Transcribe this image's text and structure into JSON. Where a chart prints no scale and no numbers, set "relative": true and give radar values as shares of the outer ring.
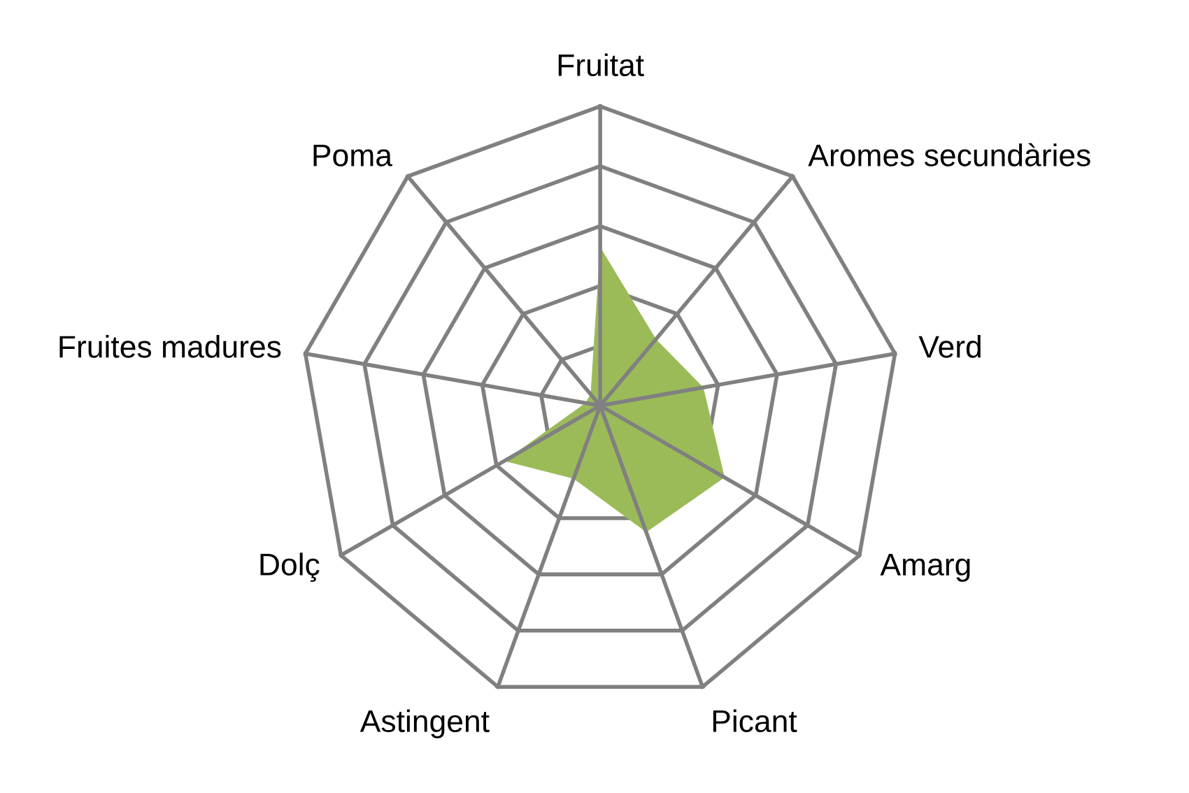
{
  "chart_data": {
    "type": "radar",
    "relative": true,
    "categories": [
      "Fruitat",
      "Aromes secundàries",
      "Verd",
      "Amarg",
      "Picant",
      "Astingent",
      "Dolç",
      "Fruites madures",
      "Poma"
    ],
    "series": [
      {
        "color": "#9bbb59",
        "type": "area",
        "values": [
          0.53,
          0.29,
          0.35,
          0.48,
          0.45,
          0.26,
          0.37,
          0.05,
          0.05
        ]
      }
    ],
    "grid": true
  }
}
